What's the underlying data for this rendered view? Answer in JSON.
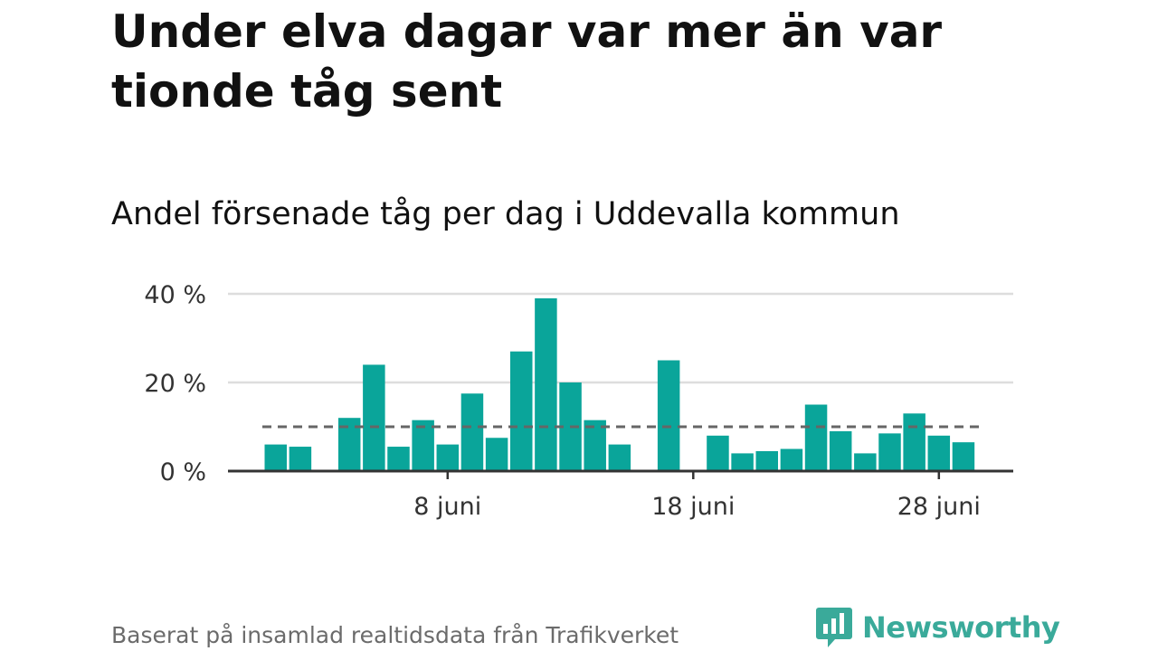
{
  "title": "Under elva dagar var mer än var tionde tåg sent",
  "subtitle": "Andel försenade tåg per dag i Uddevalla kommun",
  "footer": "Baserat på insamlad realtidsdata från Trafikverket",
  "logo_text": "Newsworthy",
  "colors": {
    "bar": "#0aa59a",
    "grid": "#dddddd",
    "axis": "#333333",
    "reference_line": "#666666",
    "brand": "#3aaa9a"
  },
  "chart_data": {
    "type": "bar",
    "x": [
      1,
      2,
      3,
      4,
      5,
      6,
      7,
      8,
      9,
      10,
      11,
      12,
      13,
      14,
      15,
      16,
      17,
      18,
      19,
      20,
      21,
      22,
      23,
      24,
      25,
      26,
      27,
      28,
      29,
      30
    ],
    "values": [
      6,
      5.5,
      null,
      12,
      24,
      5.5,
      11.5,
      6,
      17.5,
      7.5,
      27,
      39,
      20,
      11.5,
      6,
      null,
      25,
      null,
      8,
      4,
      4.5,
      5,
      15,
      9,
      4,
      8.5,
      13,
      8,
      6.5,
      null
    ],
    "x_unit": "juni",
    "xticks": [
      {
        "value": 8,
        "label": "8 juni"
      },
      {
        "value": 18,
        "label": "18 juni"
      },
      {
        "value": 28,
        "label": "28 juni"
      }
    ],
    "yticks": [
      {
        "value": 0,
        "label": "0 %"
      },
      {
        "value": 20,
        "label": "20 %"
      },
      {
        "value": 40,
        "label": "40 %"
      }
    ],
    "ylim": [
      0,
      40
    ],
    "reference_line": 10,
    "grid": true
  }
}
